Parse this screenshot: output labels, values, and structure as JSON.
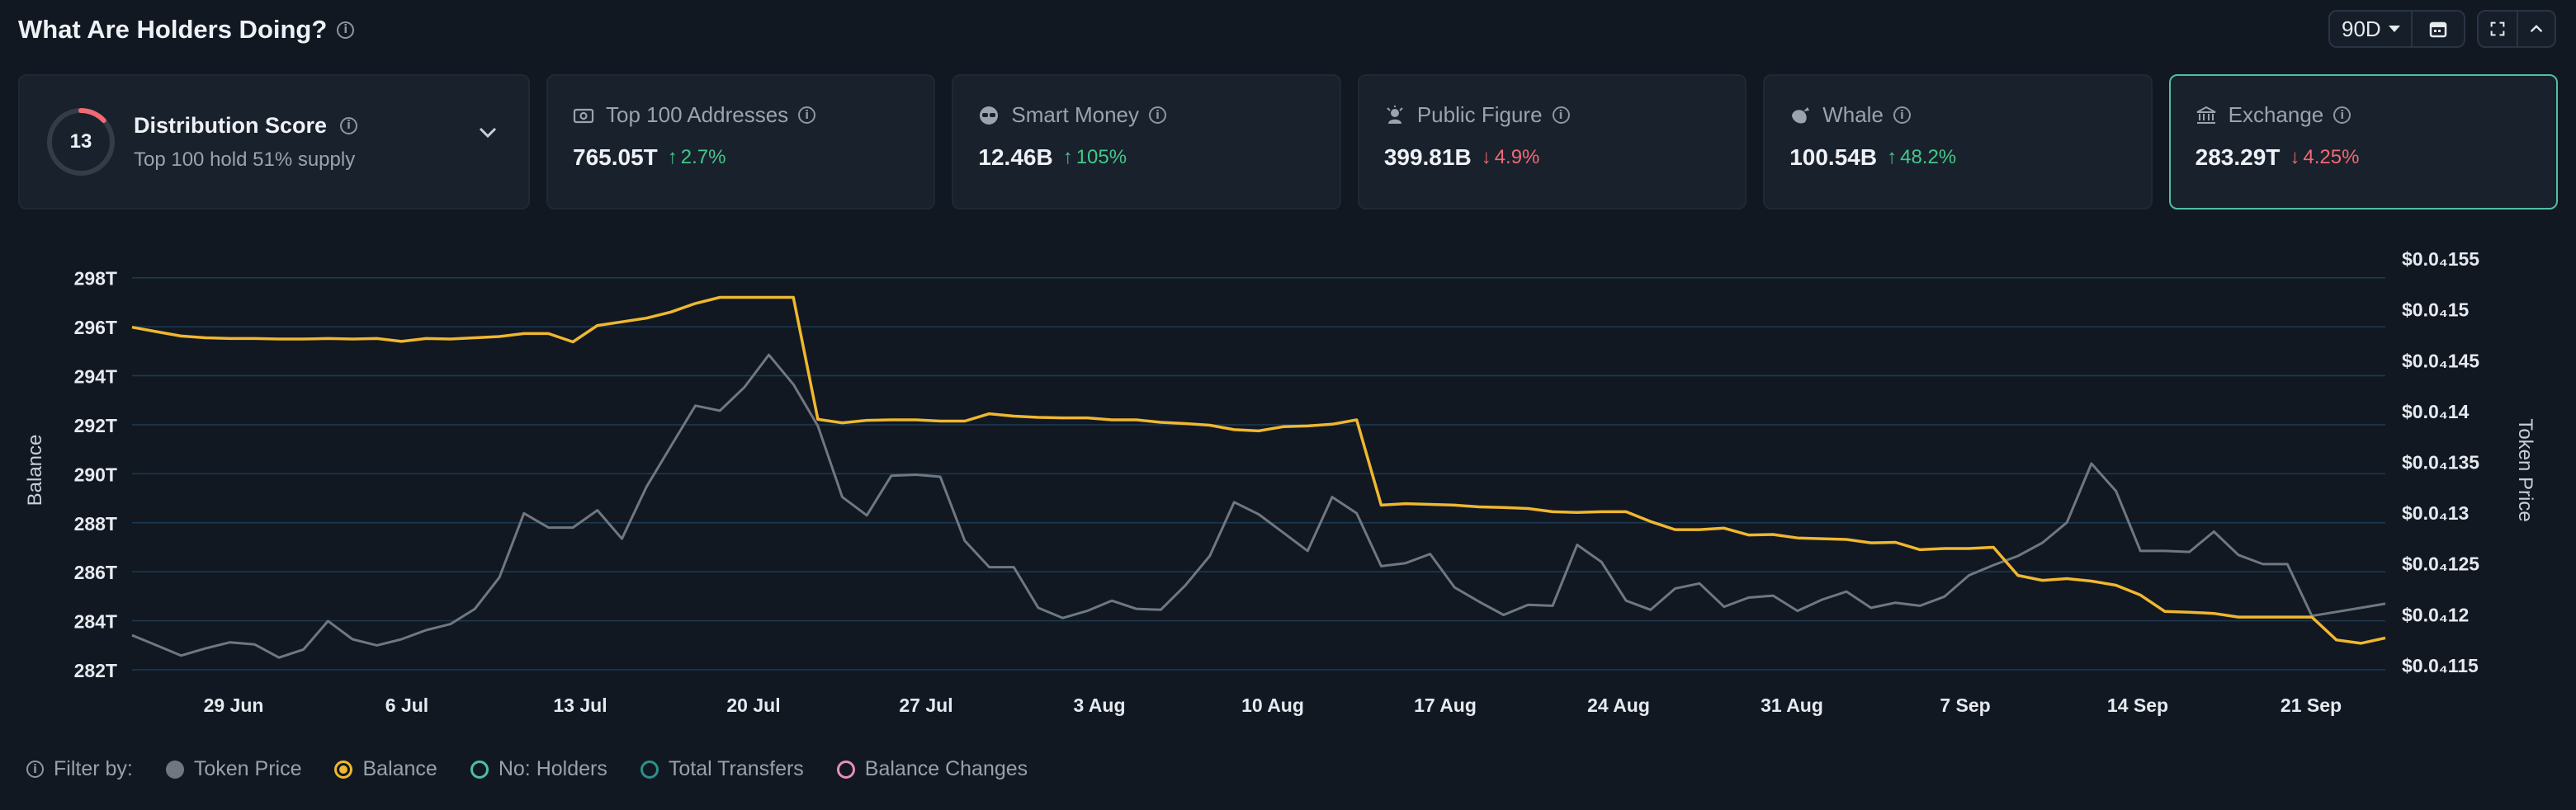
{
  "header": {
    "title": "What Are Holders Doing?"
  },
  "controls": {
    "range": "90D"
  },
  "distribution": {
    "score": "13",
    "score_fraction": 0.13,
    "title": "Distribution Score",
    "subtitle": "Top 100 hold 51% supply"
  },
  "metrics": [
    {
      "label": "Top 100 Addresses",
      "value": "765.05T",
      "delta": "2.7%",
      "direction": "up",
      "icon": "wallet-icon"
    },
    {
      "label": "Smart Money",
      "value": "12.46B",
      "delta": "105%",
      "direction": "up",
      "icon": "smart-money-icon"
    },
    {
      "label": "Public Figure",
      "value": "399.81B",
      "delta": "4.9%",
      "direction": "down",
      "icon": "public-figure-icon"
    },
    {
      "label": "Whale",
      "value": "100.54B",
      "delta": "48.2%",
      "direction": "up",
      "icon": "whale-icon"
    },
    {
      "label": "Exchange",
      "value": "283.29T",
      "delta": "4.25%",
      "direction": "down",
      "icon": "exchange-icon"
    }
  ],
  "colors": {
    "balance": "#f0b72f",
    "token_price": "#6f7782",
    "up": "#45c78a",
    "down": "#f06a74",
    "accent": "#4fbfa1"
  },
  "chart_data": {
    "type": "line",
    "xlabel": "",
    "ylabel": "Balance",
    "y2label": "Token Price",
    "ylim": [
      282,
      299
    ],
    "y2lim": [
      0.1145,
      0.1555
    ],
    "y_ticks": [
      "298T",
      "296T",
      "294T",
      "292T",
      "290T",
      "288T",
      "286T",
      "284T",
      "282T"
    ],
    "y2_ticks": [
      "$0.0₄155",
      "$0.0₄15",
      "$0.0₄145",
      "$0.0₄14",
      "$0.0₄135",
      "$0.0₄13",
      "$0.0₄125",
      "$0.0₄12",
      "$0.0₄115"
    ],
    "x_ticks": [
      "29 Jun",
      "6 Jul",
      "13 Jul",
      "20 Jul",
      "27 Jul",
      "3 Aug",
      "10 Aug",
      "17 Aug",
      "24 Aug",
      "31 Aug",
      "7 Sep",
      "14 Sep",
      "21 Sep"
    ],
    "series": [
      {
        "name": "Balance",
        "values": [
          295.98,
          295.8,
          295.62,
          295.55,
          295.52,
          295.52,
          295.5,
          295.5,
          295.52,
          295.5,
          295.52,
          295.4,
          295.52,
          295.5,
          295.55,
          295.6,
          295.72,
          295.72,
          295.38,
          296.05,
          296.2,
          296.35,
          296.6,
          296.95,
          297.2,
          297.2,
          297.2,
          297.2,
          292.22,
          292.08,
          292.18,
          292.2,
          292.2,
          292.15,
          292.15,
          292.45,
          292.35,
          292.3,
          292.28,
          292.28,
          292.2,
          292.2,
          292.1,
          292.05,
          291.98,
          291.8,
          291.75,
          291.92,
          291.95,
          292.02,
          292.2,
          288.72,
          288.78,
          288.75,
          288.72,
          288.65,
          288.62,
          288.58,
          288.45,
          288.42,
          288.45,
          288.45,
          288.05,
          287.72,
          287.72,
          287.78,
          287.5,
          287.52,
          287.38,
          287.35,
          287.32,
          287.18,
          287.2,
          286.9,
          286.95,
          286.95,
          287.0,
          285.85,
          285.65,
          285.72,
          285.62,
          285.45,
          285.05,
          284.38,
          284.35,
          284.3,
          284.15,
          284.15,
          284.15,
          284.15,
          283.22,
          283.08,
          283.3
        ]
      },
      {
        "name": "Token Price",
        "values": [
          0.1179,
          0.1169,
          0.1159,
          0.1166,
          0.1172,
          0.117,
          0.1157,
          0.1165,
          0.1193,
          0.1175,
          0.1169,
          0.1175,
          0.1184,
          0.119,
          0.1205,
          0.1236,
          0.1299,
          0.1285,
          0.1285,
          0.1302,
          0.1274,
          0.1325,
          0.1365,
          0.1405,
          0.14,
          0.1423,
          0.1455,
          0.1426,
          0.1385,
          0.1315,
          0.1297,
          0.1336,
          0.1337,
          0.1335,
          0.1272,
          0.1246,
          0.1246,
          0.1206,
          0.1196,
          0.1203,
          0.1213,
          0.1205,
          0.1204,
          0.1228,
          0.1257,
          0.131,
          0.1298,
          0.128,
          0.1262,
          0.1315,
          0.1299,
          0.1247,
          0.125,
          0.1259,
          0.1226,
          0.1212,
          0.1199,
          0.1209,
          0.1208,
          0.1268,
          0.1251,
          0.1213,
          0.1204,
          0.1225,
          0.123,
          0.1207,
          0.1216,
          0.1218,
          0.1203,
          0.1214,
          0.1222,
          0.1206,
          0.1211,
          0.1208,
          0.1217,
          0.1238,
          0.1248,
          0.1257,
          0.127,
          0.129,
          0.1348,
          0.1321,
          0.1262,
          0.1262,
          0.1261,
          0.1281,
          0.1258,
          0.1249,
          0.1249,
          0.1198,
          0.1202,
          0.1206,
          0.121
        ]
      }
    ],
    "grid": "horizontal",
    "legend": "bottom-left"
  },
  "legend": {
    "filter_label": "Filter by:",
    "items": [
      {
        "label": "Token Price",
        "color": "#6f7782",
        "style": "filled"
      },
      {
        "label": "Balance",
        "color": "#f0b72f",
        "style": "ring-dot"
      },
      {
        "label": "No: Holders",
        "color": "#4fbfa1",
        "style": "ring"
      },
      {
        "label": "Total Transfers",
        "color": "#2f8f8a",
        "style": "ring"
      },
      {
        "label": "Balance Changes",
        "color": "#e58fb8",
        "style": "ring"
      }
    ]
  }
}
